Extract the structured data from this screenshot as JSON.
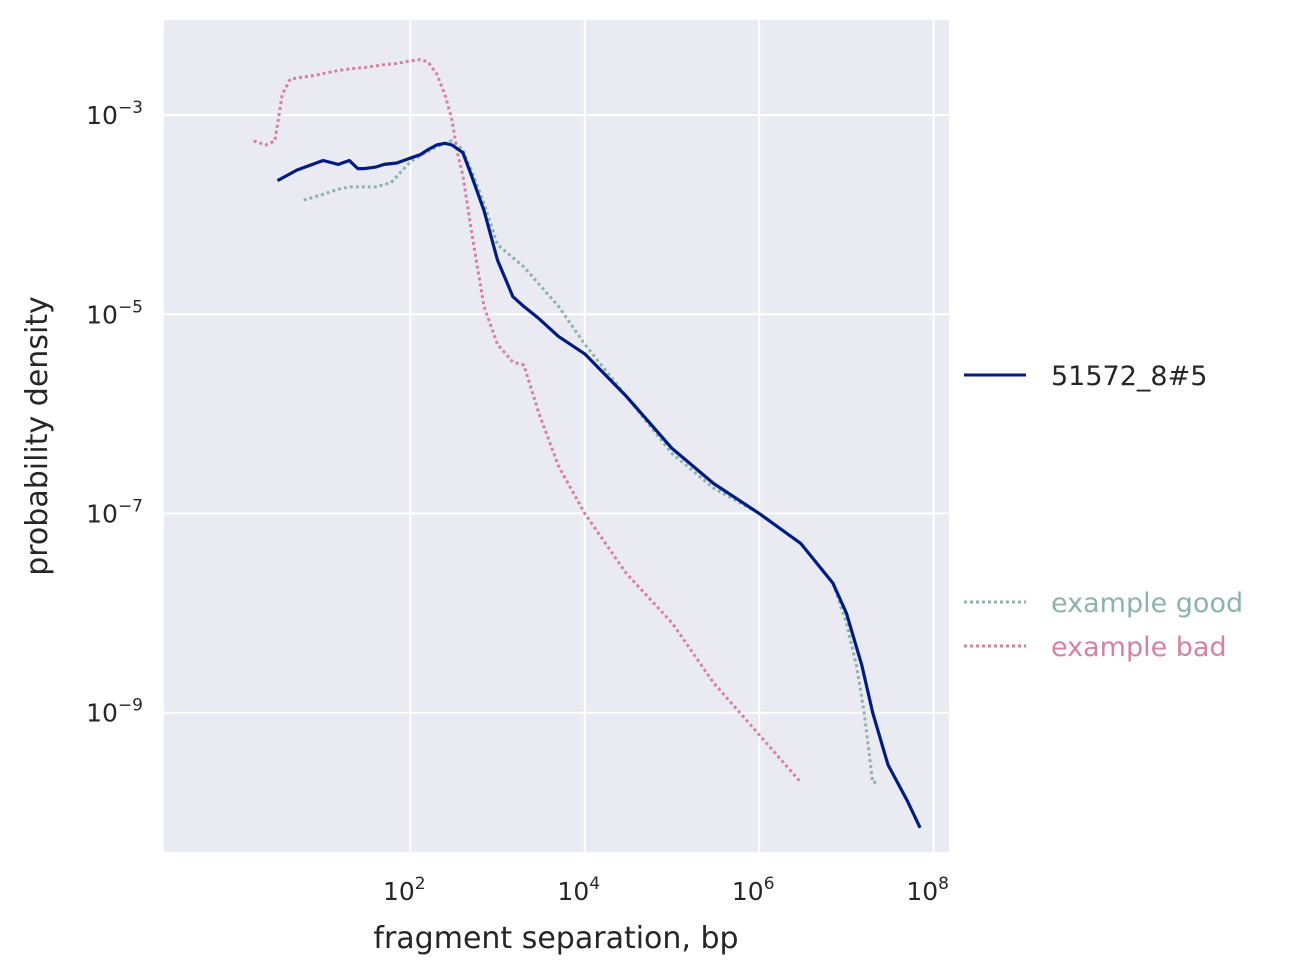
{
  "chart_data": {
    "type": "line",
    "xlabel": "fragment separation, bp",
    "ylabel": "probability density",
    "xscale": "log",
    "yscale": "log",
    "xlim": [
      0.15,
      150000000
    ],
    "ylim": [
      4e-11,
      0.009
    ],
    "x_ticks": [
      {
        "base": "10",
        "exp": "2",
        "value": 100
      },
      {
        "base": "10",
        "exp": "4",
        "value": 10000
      },
      {
        "base": "10",
        "exp": "6",
        "value": 1000000
      },
      {
        "base": "10",
        "exp": "8",
        "value": 100000000
      }
    ],
    "y_ticks": [
      {
        "base": "10",
        "exp": "−3",
        "value": 0.001
      },
      {
        "base": "10",
        "exp": "−5",
        "value": 1e-05
      },
      {
        "base": "10",
        "exp": "−7",
        "value": 1e-07
      },
      {
        "base": "10",
        "exp": "−9",
        "value": 1e-09
      }
    ],
    "grid": true,
    "background": "#eaeaf2",
    "legend_placement": "right, outside plot",
    "series": [
      {
        "name": "51572_8#5",
        "color": "#001c7f",
        "style": "solid",
        "x": [
          3,
          5,
          10,
          15,
          20,
          25,
          30,
          40,
          50,
          70,
          100,
          130,
          160,
          200,
          250,
          300,
          400,
          500,
          700,
          1000,
          1500,
          2000,
          3000,
          5000,
          10000,
          30000,
          100000,
          300000,
          1000000,
          3000000,
          7000000,
          10000000,
          15000000,
          20000000,
          30000000,
          50000000,
          70000000
        ],
        "y": [
          0.00022,
          0.00028,
          0.00035,
          0.00032,
          0.00035,
          0.00029,
          0.00029,
          0.0003,
          0.00032,
          0.00033,
          0.00037,
          0.0004,
          0.00045,
          0.0005,
          0.00052,
          0.0005,
          0.00042,
          0.00025,
          0.00011,
          3.5e-05,
          1.5e-05,
          1.2e-05,
          9e-06,
          6e-06,
          4e-06,
          1.5e-06,
          4.5e-07,
          2e-07,
          1e-07,
          5e-08,
          2e-08,
          1e-08,
          3e-09,
          1e-09,
          3e-10,
          1.3e-10,
          7e-11
        ]
      },
      {
        "name": "example good",
        "color": "#8db3ab",
        "style": "dotted",
        "x": [
          6,
          10,
          15,
          20,
          30,
          40,
          60,
          100,
          150,
          200,
          250,
          300,
          400,
          500,
          700,
          1000,
          2000,
          5000,
          10000,
          30000,
          100000,
          300000,
          1000000,
          3000000,
          7000000,
          10000000,
          13000000,
          16000000,
          20000000,
          22000000
        ],
        "y": [
          0.00014,
          0.00016,
          0.00018,
          0.00019,
          0.00019,
          0.00019,
          0.00021,
          0.00034,
          0.00042,
          0.00048,
          0.00052,
          0.00055,
          0.00045,
          0.00028,
          0.00013,
          5e-05,
          3e-05,
          1.2e-05,
          5e-06,
          1.5e-06,
          4e-07,
          1.8e-07,
          1e-07,
          5e-08,
          2e-08,
          8e-09,
          3e-09,
          1e-09,
          2e-10,
          2e-10
        ]
      },
      {
        "name": "example bad",
        "color": "#d5829f",
        "style": "dotted",
        "x": [
          1.6,
          2.2,
          2.8,
          3.4,
          4.2,
          8,
          10,
          15,
          20,
          30,
          50,
          70,
          100,
          130,
          160,
          200,
          250,
          300,
          350,
          400,
          500,
          700,
          1000,
          1500,
          2000,
          3000,
          5000,
          10000,
          30000,
          100000,
          300000,
          1000000,
          3000000
        ],
        "y": [
          0.00055,
          0.0005,
          0.00055,
          0.0016,
          0.0023,
          0.0025,
          0.0026,
          0.0028,
          0.0029,
          0.003,
          0.0032,
          0.0033,
          0.0035,
          0.0036,
          0.0034,
          0.0026,
          0.0016,
          0.0009,
          0.0004,
          0.00025,
          7e-05,
          1.2e-05,
          5e-06,
          3.3e-06,
          3.1e-06,
          1e-06,
          3e-07,
          1e-07,
          2.5e-08,
          8e-09,
          2e-09,
          6e-10,
          2e-10
        ]
      }
    ]
  }
}
